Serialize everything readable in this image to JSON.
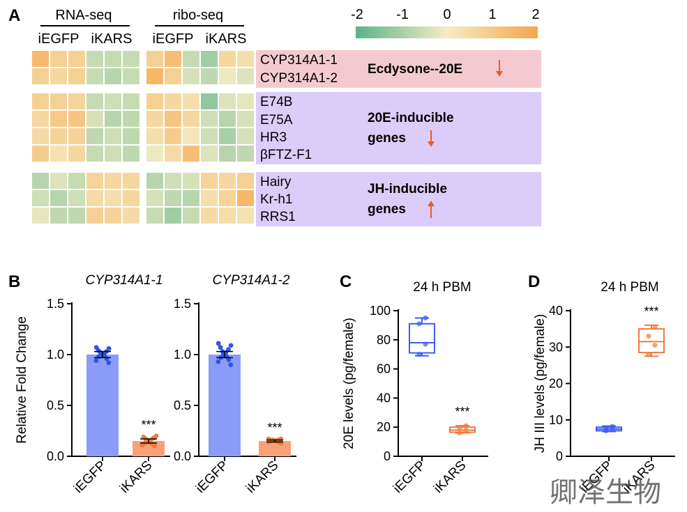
{
  "figure": {
    "panel_labels": [
      "A",
      "B",
      "C",
      "D"
    ],
    "watermark": "卿泽生物"
  },
  "heatmap": {
    "group_headers": [
      "RNA-seq",
      "ribo-seq"
    ],
    "column_labels": [
      "iEGFP",
      "iKARS",
      "iEGFP",
      "iKARS"
    ],
    "colorbar": {
      "ticks": [
        "-2",
        "-1",
        "0",
        "1",
        "2"
      ],
      "min": -2,
      "max": 2,
      "colors": [
        "#5ab38a",
        "#f5ecc4",
        "#f6a54a"
      ]
    },
    "colors": {
      "down_arrow": "#f05a1a",
      "up_arrow": "#f05a1a",
      "ecdysone_band": "#f4cad0",
      "inducible_band": "#dcccf9"
    },
    "groups": [
      {
        "label": "Ecdysone--20E",
        "label_lines": [
          "Ecdysone--20E"
        ],
        "arrow": "down",
        "genes": [
          "CYP314A1-1",
          "CYP314A1-2"
        ],
        "rna": [
          [
            1.4,
            0.8,
            0.8,
            -0.6,
            -0.6,
            -0.6
          ],
          [
            0.8,
            0.6,
            0.8,
            -0.6,
            -0.8,
            -0.6
          ]
        ],
        "ribo": [
          [
            0.8,
            1.3,
            -0.6,
            -1.1,
            0.6,
            0.4
          ],
          [
            1.5,
            0.8,
            -0.4,
            -0.7,
            -0.1,
            -0.3
          ]
        ]
      },
      {
        "label": "20E-inducible genes",
        "label_lines": [
          "20E-inducible",
          "genes"
        ],
        "arrow": "down",
        "genes": [
          "E74B",
          "E75A",
          "HR3",
          "βFTZ-F1"
        ],
        "rna": [
          [
            0.8,
            0.8,
            0.7,
            -0.6,
            -0.5,
            -0.6
          ],
          [
            0.6,
            1.0,
            1.1,
            -0.4,
            -0.8,
            -0.7
          ],
          [
            0.5,
            0.7,
            0.7,
            -0.7,
            -0.5,
            -0.7
          ],
          [
            0.9,
            0.3,
            0.6,
            -0.6,
            -0.5,
            -0.7
          ]
        ],
        "ribo": [
          [
            0.8,
            0.6,
            0.4,
            -1.3,
            -0.3,
            -0.2
          ],
          [
            0.6,
            1.1,
            0.6,
            -0.5,
            -0.8,
            -0.4
          ],
          [
            0.4,
            0.9,
            0.2,
            -0.5,
            -1.0,
            -0.4
          ],
          [
            -0.1,
            0.5,
            1.3,
            -0.3,
            -0.8,
            -0.7
          ]
        ]
      },
      {
        "label": "JH-inducible genes",
        "label_lines": [
          "JH-inducible",
          "genes"
        ],
        "arrow": "up",
        "genes": [
          "Hairy",
          "Kr-h1",
          "RRS1"
        ],
        "rna": [
          [
            -0.8,
            -0.3,
            -0.6,
            0.7,
            0.6,
            0.6
          ],
          [
            -0.5,
            -0.8,
            -0.5,
            0.5,
            0.4,
            0.6
          ],
          [
            -0.2,
            -0.7,
            -0.7,
            0.8,
            0.7,
            0.5
          ]
        ],
        "ribo": [
          [
            -0.8,
            -0.5,
            -0.4,
            0.7,
            0.6,
            0.8
          ],
          [
            -0.4,
            -0.7,
            -0.8,
            0.4,
            0.7,
            1.5
          ],
          [
            -0.6,
            -1.1,
            -0.6,
            0.5,
            0.4,
            0.3
          ]
        ]
      }
    ]
  },
  "chart_data": [
    {
      "id": "B1",
      "type": "bar",
      "title": "CYP314A1-1",
      "ylabel": "Relative Fold Change",
      "ylim": [
        0,
        1.5
      ],
      "yticks": [
        "0.0",
        "0.5",
        "1.0",
        "1.5"
      ],
      "yticks_values": [
        0,
        0.5,
        1.0,
        1.5
      ],
      "categories": [
        "iEGFP",
        "iKARS"
      ],
      "values": [
        1.0,
        0.15
      ],
      "errors": [
        0.03,
        0.02
      ],
      "bar_colors": [
        "#8a9cf8",
        "#f8a07a"
      ],
      "point_colors": [
        "#2f55e8",
        "#f07a3c"
      ],
      "points": [
        [
          0.92,
          0.94,
          0.96,
          0.98,
          0.99,
          1.0,
          1.0,
          1.01,
          1.02,
          1.03,
          1.04,
          1.06,
          1.07
        ],
        [
          0.1,
          0.11,
          0.12,
          0.13,
          0.14,
          0.14,
          0.15,
          0.16,
          0.17,
          0.18,
          0.19,
          0.2
        ]
      ],
      "annotations": [
        {
          "category": "iKARS",
          "text": "***"
        }
      ]
    },
    {
      "id": "B2",
      "type": "bar",
      "title": "CYP314A1-2",
      "ylabel": "",
      "ylim": [
        0,
        1.5
      ],
      "yticks": [
        "0.0",
        "0.5",
        "1.0",
        "1.5"
      ],
      "yticks_values": [
        0,
        0.5,
        1.0,
        1.5
      ],
      "categories": [
        "iEGFP",
        "iKARS"
      ],
      "values": [
        1.0,
        0.15
      ],
      "errors": [
        0.03,
        0.01
      ],
      "bar_colors": [
        "#8a9cf8",
        "#f8a07a"
      ],
      "point_colors": [
        "#2f55e8",
        "#f07a3c"
      ],
      "points": [
        [
          0.9,
          0.93,
          0.95,
          0.97,
          0.98,
          1.0,
          1.01,
          1.02,
          1.03,
          1.05,
          1.07,
          1.09,
          1.11
        ],
        [
          0.13,
          0.14,
          0.14,
          0.15,
          0.15,
          0.15,
          0.16,
          0.16,
          0.16,
          0.17,
          0.17
        ]
      ],
      "annotations": [
        {
          "category": "iKARS",
          "text": "***"
        }
      ]
    },
    {
      "id": "C",
      "type": "box",
      "title": "24 h PBM",
      "ylabel": "20E levels (pg/female)",
      "ylim": [
        0,
        100
      ],
      "yticks": [
        "0",
        "20",
        "40",
        "60",
        "80",
        "100"
      ],
      "yticks_values": [
        0,
        20,
        40,
        60,
        80,
        100
      ],
      "categories": [
        "iEGFP",
        "iKARS"
      ],
      "box_colors": [
        "#3c5ef0",
        "#f07a3c"
      ],
      "boxes": [
        {
          "min": 69,
          "q1": 71,
          "median": 78,
          "q3": 91,
          "max": 95,
          "points": [
            70,
            77,
            91,
            95
          ]
        },
        {
          "min": 16,
          "q1": 16.5,
          "median": 18,
          "q3": 20,
          "max": 21,
          "points": [
            16,
            18,
            19,
            21
          ]
        }
      ],
      "annotations": [
        {
          "category": "iKARS",
          "text": "***"
        }
      ]
    },
    {
      "id": "D",
      "type": "box",
      "title": "24 h PBM",
      "ylabel": "JH III levels (pg/female)",
      "ylim": [
        0,
        40
      ],
      "yticks": [
        "0",
        "10",
        "20",
        "30",
        "40"
      ],
      "yticks_values": [
        0,
        10,
        20,
        30,
        40
      ],
      "categories": [
        "iEGFP",
        "iKARS"
      ],
      "box_colors": [
        "#3c5ef0",
        "#f07a3c"
      ],
      "boxes": [
        {
          "min": 6.8,
          "q1": 7.0,
          "median": 7.5,
          "q3": 8.0,
          "max": 8.3,
          "points": [
            7.0,
            7.3,
            7.6,
            8.2
          ]
        },
        {
          "min": 27.5,
          "q1": 28.5,
          "median": 31.5,
          "q3": 35,
          "max": 36,
          "points": [
            28,
            30.5,
            33,
            35.5
          ]
        }
      ],
      "annotations": [
        {
          "category": "iKARS",
          "text": "***"
        }
      ]
    }
  ]
}
